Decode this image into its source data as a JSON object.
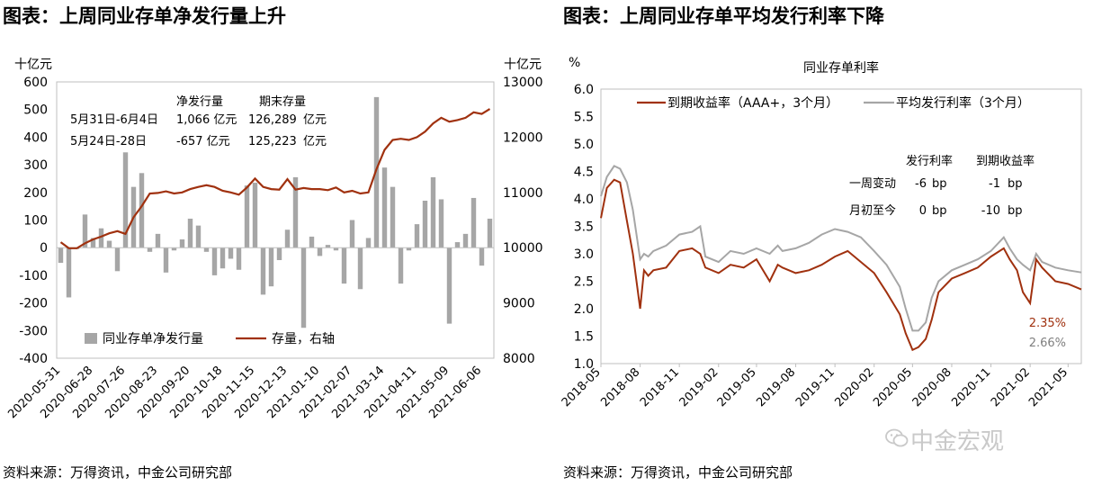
{
  "left_panel": {
    "title": "图表：上周同业存单净发行量上升",
    "source": "资料来源：万得资讯，中金公司研究部"
  },
  "right_panel": {
    "title": "图表：上周同业存单平均发行利率下降",
    "source": "资料来源：万得资讯，中金公司研究部"
  },
  "watermark": "中金宏观",
  "colors": {
    "bar": "#a6a6a6",
    "stock_line": "#a0310f",
    "avg_rate_line": "#a6a6a6",
    "yield_line": "#a0310f"
  },
  "chart_data": [
    {
      "type": "bar",
      "y_unit_left": "十亿元",
      "y_unit_right": "十亿元",
      "ylim_left": [
        -400,
        600
      ],
      "yticks_left": [
        "-400",
        "-300",
        "-200",
        "-100",
        "0",
        "100",
        "200",
        "300",
        "400",
        "500",
        "600"
      ],
      "ylim_right": [
        8000,
        13000
      ],
      "yticks_right": [
        "8000",
        "9000",
        "10000",
        "11000",
        "12000",
        "13000"
      ],
      "x_tick_labels": [
        "2020-05-31",
        "2020-06-28",
        "2020-07-26",
        "2020-08-23",
        "2020-09-20",
        "2020-10-18",
        "2020-11-15",
        "2020-12-13",
        "2021-01-10",
        "2021-02-07",
        "2021-03-14",
        "2021-04-11",
        "2021-05-09",
        "2021-06-06"
      ],
      "legend_placement": "bottom",
      "series": [
        {
          "name": "同业存单净发行量",
          "axis": "left",
          "kind": "bar",
          "values": [
            -55,
            -180,
            -5,
            120,
            35,
            70,
            25,
            -85,
            345,
            220,
            270,
            -15,
            50,
            -90,
            -10,
            30,
            105,
            80,
            -15,
            -100,
            -75,
            -40,
            -80,
            225,
            235,
            -170,
            -140,
            -45,
            65,
            255,
            -290,
            40,
            -30,
            10,
            -10,
            -130,
            100,
            -150,
            35,
            545,
            290,
            220,
            -130,
            -10,
            85,
            170,
            255,
            175,
            -275,
            20,
            50,
            180,
            -65,
            105
          ]
        },
        {
          "name": "存量，右轴",
          "axis": "right",
          "kind": "line",
          "values": [
            10100,
            9990,
            9990,
            10080,
            10150,
            10200,
            10260,
            10300,
            10250,
            10550,
            10750,
            10980,
            10990,
            11020,
            10980,
            11000,
            11060,
            11100,
            11130,
            11100,
            11030,
            11000,
            10960,
            11090,
            11250,
            11100,
            11060,
            11050,
            11240,
            11050,
            11080,
            11060,
            11060,
            11040,
            11090,
            11000,
            11030,
            10980,
            11000,
            11420,
            11770,
            11950,
            11970,
            11950,
            12000,
            12100,
            12250,
            12350,
            12280,
            12310,
            12350,
            12450,
            12420,
            12510
          ]
        }
      ],
      "annotations": {
        "header_col1": "净发行量",
        "header_col2": "期末存量",
        "rows": [
          {
            "period": "5月31日-6月4日",
            "net": "1,066 亿元",
            "stock": "126,289",
            "unit": "亿元"
          },
          {
            "period": "5月24日-28日",
            "net": "-657   亿元",
            "stock": "125,223",
            "unit": "亿元"
          }
        ]
      }
    },
    {
      "type": "line",
      "title": "同业存单利率",
      "y_unit": "%",
      "ylim": [
        1.0,
        6.0
      ],
      "yticks": [
        "1.0",
        "1.5",
        "2.0",
        "2.5",
        "3.0",
        "3.5",
        "4.0",
        "4.5",
        "5.0",
        "5.5",
        "6.0"
      ],
      "x_tick_labels": [
        "2018-05",
        "2018-08",
        "2018-11",
        "2019-02",
        "2019-05",
        "2019-08",
        "2019-11",
        "2020-02",
        "2020-05",
        "2020-08",
        "2020-11",
        "2021-02",
        "2021-05"
      ],
      "x_range": [
        "2018-05",
        "2021-06"
      ],
      "legend_placement": "top",
      "series": [
        {
          "name": "到期收益率（AAA+，3个月）",
          "color_key": "yield_line",
          "x": [
            "2018-05",
            "2018-05-15",
            "2018-06",
            "2018-06-15",
            "2018-07",
            "2018-07-15",
            "2018-08",
            "2018-08-10",
            "2018-08-20",
            "2018-09",
            "2018-10",
            "2018-11",
            "2018-12",
            "2018-12-20",
            "2019-01",
            "2019-02",
            "2019-03",
            "2019-04",
            "2019-05",
            "2019-06",
            "2019-06-20",
            "2019-07",
            "2019-08",
            "2019-09",
            "2019-10",
            "2019-11",
            "2019-12",
            "2020-01",
            "2020-02",
            "2020-03",
            "2020-04",
            "2020-04-15",
            "2020-05",
            "2020-05-15",
            "2020-06",
            "2020-06-15",
            "2020-07",
            "2020-08",
            "2020-09",
            "2020-10",
            "2020-11",
            "2020-12",
            "2020-12-15",
            "2021-01",
            "2021-01-15",
            "2021-02",
            "2021-02-15",
            "2021-03",
            "2021-04",
            "2021-05",
            "2021-06"
          ],
          "y": [
            3.65,
            4.2,
            4.35,
            4.3,
            3.6,
            3.0,
            2.0,
            2.7,
            2.6,
            2.7,
            2.75,
            3.05,
            3.1,
            3.0,
            2.75,
            2.65,
            2.8,
            2.75,
            2.9,
            2.5,
            2.8,
            2.75,
            2.65,
            2.7,
            2.8,
            2.95,
            3.05,
            2.85,
            2.65,
            2.3,
            1.9,
            1.55,
            1.25,
            1.3,
            1.45,
            1.8,
            2.3,
            2.55,
            2.65,
            2.75,
            2.95,
            3.1,
            2.9,
            2.7,
            2.3,
            2.1,
            2.9,
            2.75,
            2.5,
            2.45,
            2.35
          ]
        },
        {
          "name": "平均发行利率（3个月）",
          "color_key": "avg_rate_line",
          "x": [
            "2018-05",
            "2018-05-15",
            "2018-06",
            "2018-06-15",
            "2018-07",
            "2018-07-15",
            "2018-08",
            "2018-08-10",
            "2018-08-20",
            "2018-09",
            "2018-10",
            "2018-11",
            "2018-12",
            "2018-12-20",
            "2019-01",
            "2019-02",
            "2019-03",
            "2019-04",
            "2019-05",
            "2019-06",
            "2019-06-20",
            "2019-07",
            "2019-08",
            "2019-09",
            "2019-10",
            "2019-11",
            "2019-12",
            "2020-01",
            "2020-02",
            "2020-03",
            "2020-04",
            "2020-04-15",
            "2020-05",
            "2020-05-15",
            "2020-06",
            "2020-06-15",
            "2020-07",
            "2020-08",
            "2020-09",
            "2020-10",
            "2020-11",
            "2020-12",
            "2020-12-15",
            "2021-01",
            "2021-01-15",
            "2021-02",
            "2021-02-15",
            "2021-03",
            "2021-04",
            "2021-05",
            "2021-06"
          ],
          "y": [
            4.05,
            4.4,
            4.6,
            4.55,
            4.3,
            3.8,
            2.9,
            3.0,
            2.95,
            3.05,
            3.15,
            3.35,
            3.4,
            3.5,
            2.95,
            2.85,
            3.05,
            3.0,
            3.1,
            3.0,
            3.15,
            3.05,
            3.1,
            3.2,
            3.35,
            3.45,
            3.4,
            3.3,
            3.05,
            2.8,
            2.4,
            2.0,
            1.6,
            1.6,
            1.75,
            2.2,
            2.5,
            2.7,
            2.8,
            2.9,
            3.05,
            3.3,
            3.1,
            2.9,
            2.8,
            2.7,
            3.0,
            2.85,
            2.75,
            2.7,
            2.66
          ]
        }
      ],
      "annotations": {
        "header_issue": "发行利率",
        "header_yield": "到期收益率",
        "rows": [
          {
            "label": "一周变动",
            "issue": "-6",
            "issue_unit": "bp",
            "yield": "-1",
            "yield_unit": "bp"
          },
          {
            "label": "月初至今",
            "issue": "0",
            "issue_unit": "bp",
            "yield": "-10",
            "yield_unit": "bp"
          }
        ],
        "end_value_yield": "2.35%",
        "end_value_avg": "2.66%"
      }
    }
  ]
}
